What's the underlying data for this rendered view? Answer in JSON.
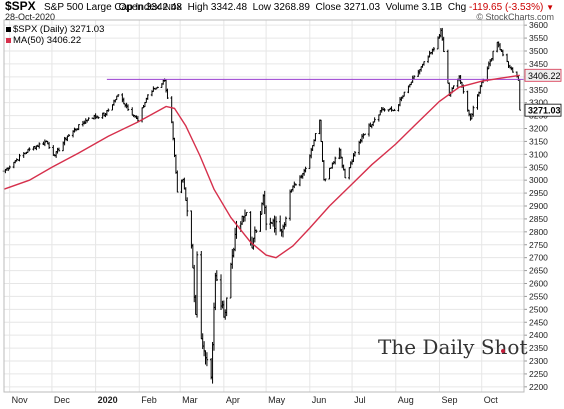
{
  "header": {
    "symbol": "$SPX",
    "name": "S&P 500 Large Cap Index",
    "exchange": "INDX",
    "date": "28-Oct-2020",
    "source": "© StockCharts.com",
    "open_label": "Open",
    "open": "3342.48",
    "high_label": "High",
    "high": "3342.48",
    "low_label": "Low",
    "low": "3268.89",
    "close_label": "Close",
    "close": "3271.03",
    "volume_label": "Volume",
    "volume": "3.1B",
    "change_label": "Chg",
    "change": "-119.65 (-3.53%)",
    "change_icon": "down-triangle-icon"
  },
  "legend": {
    "price": "$SPX (Daily) 3271.03",
    "ma": "MA(50) 3406.22"
  },
  "brand": "The Daily Shot",
  "colors": {
    "price": "#000000",
    "ma": "#d6304c",
    "level": "#9a3fd0",
    "grid": "#e6e6e6",
    "tag_ma": "#eeeeee",
    "tag_price": "#ffffff"
  },
  "chart_data": {
    "type": "bar",
    "title": "$SPX S&P 500 Large Cap Index INDX",
    "y_axis_side": "right",
    "ylim": [
      2180,
      3620
    ],
    "yticks": [
      2200,
      2250,
      2300,
      2350,
      2400,
      2450,
      2500,
      2550,
      2600,
      2650,
      2700,
      2750,
      2800,
      2850,
      2900,
      2950,
      3000,
      3050,
      3100,
      3150,
      3200,
      3250,
      3300,
      3350,
      3400,
      3450,
      3500,
      3550,
      3600
    ],
    "x_ticks": [
      {
        "label": "Nov",
        "date": "2019-11-01"
      },
      {
        "label": "Dec",
        "date": "2019-12-01"
      },
      {
        "label": "2020",
        "date": "2020-01-01",
        "bold": true
      },
      {
        "label": "Feb",
        "date": "2020-02-01"
      },
      {
        "label": "Mar",
        "date": "2020-03-01"
      },
      {
        "label": "Apr",
        "date": "2020-04-01"
      },
      {
        "label": "May",
        "date": "2020-05-01"
      },
      {
        "label": "Jun",
        "date": "2020-06-01"
      },
      {
        "label": "Jul",
        "date": "2020-07-01"
      },
      {
        "label": "Aug",
        "date": "2020-08-01"
      },
      {
        "label": "Sep",
        "date": "2020-09-01"
      },
      {
        "label": "Oct",
        "date": "2020-10-01"
      }
    ],
    "xlim": [
      "2019-10-28",
      "2020-10-31"
    ],
    "price_series": {
      "name": "$SPX (Daily)",
      "type": "ohlc",
      "anchors": [
        [
          "2019-10-28",
          3035
        ],
        [
          "2019-11-05",
          3075
        ],
        [
          "2019-11-15",
          3120
        ],
        [
          "2019-11-27",
          3150
        ],
        [
          "2019-12-03",
          3095
        ],
        [
          "2019-12-12",
          3170
        ],
        [
          "2019-12-27",
          3240
        ],
        [
          "2020-01-08",
          3255
        ],
        [
          "2020-01-17",
          3330
        ],
        [
          "2020-01-31",
          3230
        ],
        [
          "2020-02-07",
          3330
        ],
        [
          "2020-02-19",
          3386
        ],
        [
          "2020-02-24",
          3225
        ],
        [
          "2020-02-28",
          2954
        ],
        [
          "2020-03-03",
          3003
        ],
        [
          "2020-03-09",
          2746
        ],
        [
          "2020-03-12",
          2480
        ],
        [
          "2020-03-13",
          2711
        ],
        [
          "2020-03-16",
          2386
        ],
        [
          "2020-03-20",
          2305
        ],
        [
          "2020-03-23",
          2237
        ],
        [
          "2020-03-26",
          2630
        ],
        [
          "2020-04-01",
          2470
        ],
        [
          "2020-04-09",
          2790
        ],
        [
          "2020-04-17",
          2875
        ],
        [
          "2020-04-21",
          2737
        ],
        [
          "2020-04-29",
          2940
        ],
        [
          "2020-05-01",
          2830
        ],
        [
          "2020-05-13",
          2820
        ],
        [
          "2020-05-18",
          2955
        ],
        [
          "2020-05-29",
          3045
        ],
        [
          "2020-06-08",
          3232
        ],
        [
          "2020-06-11",
          3002
        ],
        [
          "2020-06-22",
          3117
        ],
        [
          "2020-06-26",
          3009
        ],
        [
          "2020-07-08",
          3170
        ],
        [
          "2020-07-22",
          3275
        ],
        [
          "2020-07-31",
          3270
        ],
        [
          "2020-08-12",
          3380
        ],
        [
          "2020-08-28",
          3508
        ],
        [
          "2020-09-02",
          3580
        ],
        [
          "2020-09-08",
          3331
        ],
        [
          "2020-09-15",
          3400
        ],
        [
          "2020-09-23",
          3237
        ],
        [
          "2020-10-01",
          3380
        ],
        [
          "2020-10-12",
          3534
        ],
        [
          "2020-10-21",
          3435
        ],
        [
          "2020-10-26",
          3401
        ],
        [
          "2020-10-27",
          3390
        ],
        [
          "2020-10-28",
          3271
        ]
      ]
    },
    "ma_series": {
      "name": "MA(50)",
      "points": [
        [
          "2019-10-28",
          2965
        ],
        [
          "2019-11-15",
          3000
        ],
        [
          "2019-12-01",
          3050
        ],
        [
          "2019-12-20",
          3105
        ],
        [
          "2020-01-10",
          3170
        ],
        [
          "2020-01-31",
          3225
        ],
        [
          "2020-02-20",
          3285
        ],
        [
          "2020-02-26",
          3278
        ],
        [
          "2020-03-05",
          3210
        ],
        [
          "2020-03-15",
          3095
        ],
        [
          "2020-03-25",
          2965
        ],
        [
          "2020-04-06",
          2855
        ],
        [
          "2020-04-20",
          2760
        ],
        [
          "2020-05-01",
          2710
        ],
        [
          "2020-05-08",
          2700
        ],
        [
          "2020-05-20",
          2745
        ],
        [
          "2020-06-01",
          2815
        ],
        [
          "2020-06-15",
          2900
        ],
        [
          "2020-07-01",
          2985
        ],
        [
          "2020-07-15",
          3060
        ],
        [
          "2020-08-01",
          3140
        ],
        [
          "2020-08-15",
          3215
        ],
        [
          "2020-09-01",
          3305
        ],
        [
          "2020-09-15",
          3360
        ],
        [
          "2020-10-01",
          3383
        ],
        [
          "2020-10-15",
          3395
        ],
        [
          "2020-10-28",
          3406
        ]
      ]
    },
    "level_line": {
      "value": 3390,
      "from": "2020-01-09",
      "to": "2020-10-28"
    },
    "tags": [
      {
        "label": "3406.22",
        "value": 3406,
        "series": "ma"
      },
      {
        "label": "3271.03",
        "value": 3271,
        "series": "price"
      }
    ]
  }
}
